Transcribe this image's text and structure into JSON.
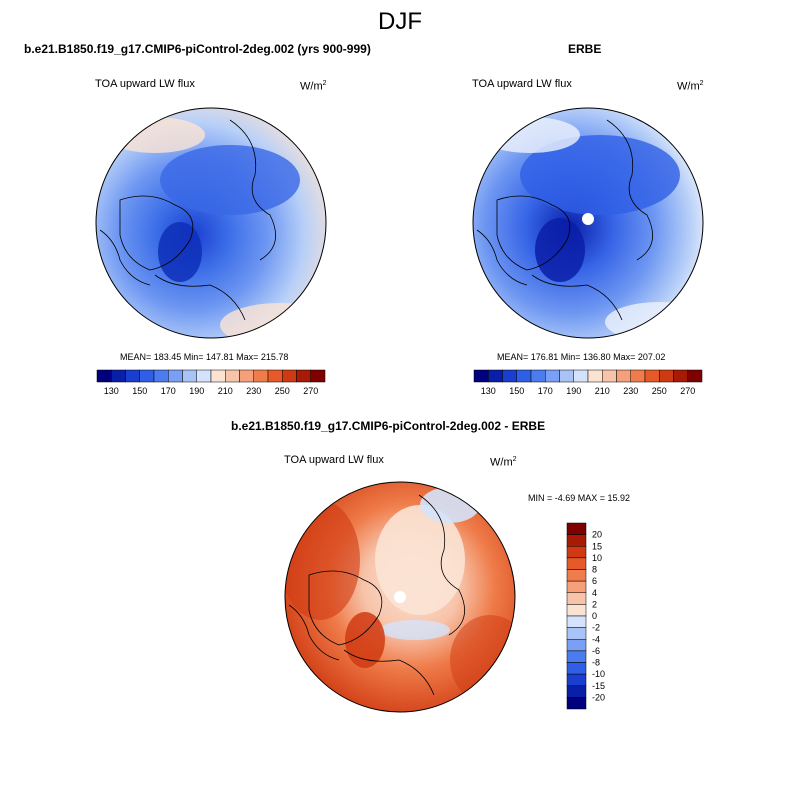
{
  "main_title": "DJF",
  "panels": [
    {
      "title": "b.e21.B1850.f19_g17.CMIP6-piControl-2deg.002 (yrs 900-999)",
      "variable": "TOA upward LW flux",
      "units_base": "W/m",
      "units_exp": "2",
      "stats": "MEAN= 183.45  Min= 147.81  Max= 215.78"
    },
    {
      "title": "ERBE",
      "variable": "TOA upward LW flux",
      "units_base": "W/m",
      "units_exp": "2",
      "stats": "MEAN= 176.81  Min= 136.80  Max= 207.02"
    },
    {
      "title": "b.e21.B1850.f19_g17.CMIP6-piControl-2deg.002 - ERBE",
      "variable": "TOA upward LW flux",
      "units_base": "W/m",
      "units_exp": "2",
      "stats": "MIN =  -4.69 MAX =  15.92"
    }
  ],
  "colorbar_abs": {
    "colors": [
      "#00007f",
      "#0a1fa8",
      "#1a3fd0",
      "#2f5fe6",
      "#4a7cef",
      "#7aa0f5",
      "#a9c3f7",
      "#d4e3fb",
      "#fbe3d4",
      "#f7c3a9",
      "#f5a07a",
      "#ef7c4a",
      "#e65a2a",
      "#d03a12",
      "#a81a06",
      "#7f0000"
    ],
    "labels": [
      "130",
      "150",
      "170",
      "190",
      "210",
      "230",
      "250",
      "270"
    ]
  },
  "colorbar_diff": {
    "colors": [
      "#7f0000",
      "#a81a06",
      "#d03a12",
      "#e65a2a",
      "#ef7c4a",
      "#f5a07a",
      "#f7c3a9",
      "#fbe3d4",
      "#d4e3fb",
      "#a9c3f7",
      "#7aa0f5",
      "#4a7cef",
      "#2f5fe6",
      "#1a3fd0",
      "#0a1fa8",
      "#00007f"
    ],
    "labels": [
      "20",
      "15",
      "10",
      "8",
      "6",
      "4",
      "2",
      "0",
      "-2",
      "-4",
      "-6",
      "-8",
      "-10",
      "-15",
      "-20"
    ]
  },
  "colors": {
    "map_edge": "#000000",
    "pole_hole": "#ffffff"
  }
}
